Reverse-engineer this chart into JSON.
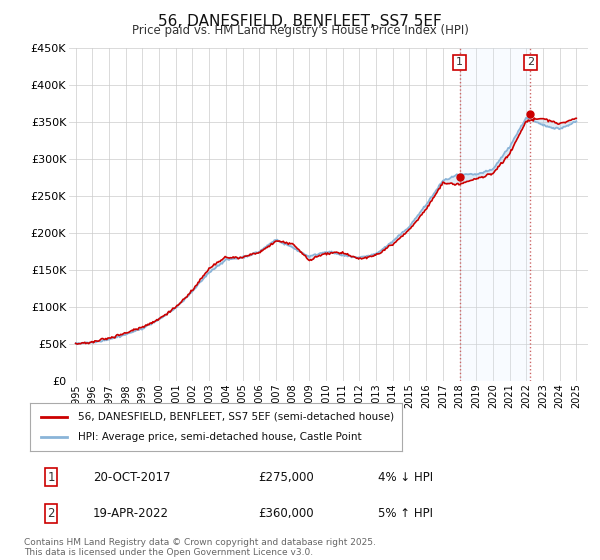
{
  "title": "56, DANESFIELD, BENFLEET, SS7 5EF",
  "subtitle": "Price paid vs. HM Land Registry's House Price Index (HPI)",
  "ylim": [
    0,
    450000
  ],
  "yticks": [
    0,
    50000,
    100000,
    150000,
    200000,
    250000,
    300000,
    350000,
    400000,
    450000
  ],
  "ytick_labels": [
    "£0",
    "£50K",
    "£100K",
    "£150K",
    "£200K",
    "£250K",
    "£300K",
    "£350K",
    "£400K",
    "£450K"
  ],
  "hpi_color": "#8ab4d8",
  "price_color": "#cc0000",
  "shade_color": "#ddeeff",
  "marker1_year": 2018.0,
  "marker1_price": 275000,
  "marker2_year": 2022.25,
  "marker2_price": 360000,
  "vline_color": "#cc6666",
  "legend_label1": "56, DANESFIELD, BENFLEET, SS7 5EF (semi-detached house)",
  "legend_label2": "HPI: Average price, semi-detached house, Castle Point",
  "note1_num": "1",
  "note1_date": "20-OCT-2017",
  "note1_price": "£275,000",
  "note1_detail": "4% ↓ HPI",
  "note2_num": "2",
  "note2_date": "19-APR-2022",
  "note2_price": "£360,000",
  "note2_detail": "5% ↑ HPI",
  "footer": "Contains HM Land Registry data © Crown copyright and database right 2025.\nThis data is licensed under the Open Government Licence v3.0.",
  "background_color": "#ffffff",
  "grid_color": "#cccccc",
  "hpi_anchors_years": [
    1995,
    1996,
    1997,
    1998,
    1999,
    2000,
    2001,
    2002,
    2003,
    2004,
    2005,
    2006,
    2007,
    2008,
    2009,
    2010,
    2011,
    2012,
    2013,
    2014,
    2015,
    2016,
    2017,
    2018,
    2019,
    2020,
    2021,
    2022,
    2023,
    2024,
    2025
  ],
  "hpi_anchors_vals": [
    50000,
    52000,
    57000,
    64000,
    72000,
    84000,
    100000,
    122000,
    148000,
    165000,
    168000,
    175000,
    192000,
    180000,
    168000,
    175000,
    170000,
    167000,
    172000,
    188000,
    208000,
    238000,
    270000,
    278000,
    278000,
    285000,
    315000,
    355000,
    345000,
    340000,
    350000
  ],
  "price_anchors_years": [
    1995,
    1996,
    1997,
    1998,
    1999,
    2000,
    2001,
    2002,
    2003,
    2004,
    2005,
    2006,
    2007,
    2008,
    2009,
    2010,
    2011,
    2012,
    2013,
    2014,
    2015,
    2016,
    2017,
    2018,
    2019,
    2020,
    2021,
    2022,
    2023,
    2024,
    2025
  ],
  "price_anchors_vals": [
    50000,
    51000,
    57000,
    63000,
    72000,
    83000,
    99000,
    121000,
    150000,
    165000,
    165000,
    172000,
    188000,
    185000,
    162000,
    172000,
    173000,
    165000,
    170000,
    185000,
    205000,
    233000,
    270000,
    268000,
    275000,
    282000,
    308000,
    352000,
    355000,
    348000,
    355000
  ]
}
